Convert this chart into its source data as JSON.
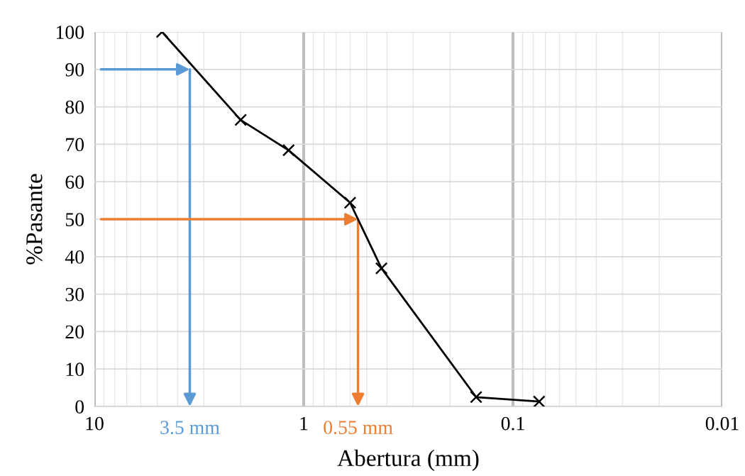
{
  "chart_data": {
    "type": "line",
    "xlabel": "Abertura (mm)",
    "ylabel": "%Pasante",
    "x": [
      4.75,
      2.0,
      1.18,
      0.6,
      0.425,
      0.15,
      0.075
    ],
    "series": [
      {
        "color": "#000000",
        "values": [
          100,
          76.5,
          68.4,
          54.4,
          36.9,
          2.5,
          1.3
        ]
      }
    ],
    "marker": "cross",
    "log": "x",
    "xlim": [
      10,
      0.01
    ],
    "xticks": [
      10,
      1,
      0.1,
      0.01
    ],
    "ylim": [
      0,
      100
    ],
    "yticks": [
      0,
      10,
      20,
      30,
      40,
      50,
      60,
      70,
      80,
      90,
      100
    ],
    "grid": true,
    "annotations": [
      {
        "text": "3.5 mm",
        "x": 3.5,
        "y": 90
      },
      {
        "text": "0.55 mm",
        "x": 0.55,
        "y": 50
      }
    ]
  }
}
